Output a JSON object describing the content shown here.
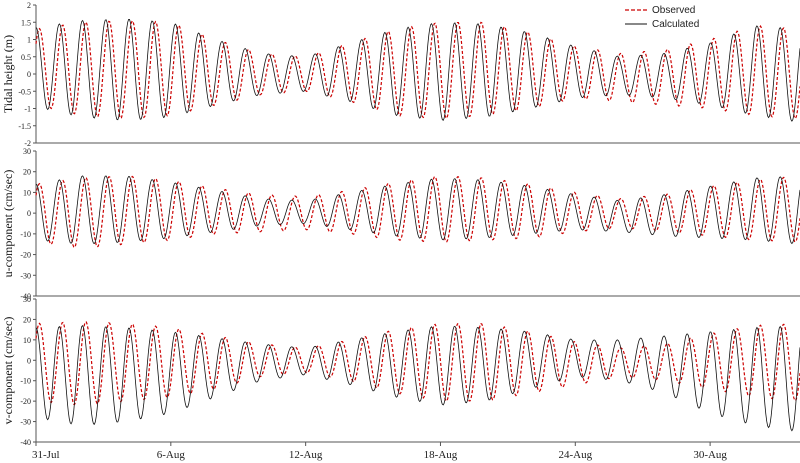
{
  "chart_data": [
    {
      "type": "line",
      "panel": "tidal-height",
      "ylabel": "Tidal height (m)",
      "ylim": [
        -2,
        2
      ],
      "yticks": [
        "-2",
        "-1.5",
        "-1",
        "-0.5",
        "0",
        "0.5",
        "1",
        "1.5",
        "2"
      ],
      "xlim": [
        "31-Jul",
        "3-Sep"
      ],
      "legend": "top-right",
      "series": [
        {
          "name": "Observed",
          "color": "#cc0000",
          "dash": true,
          "envelope": {
            "x": [
              "31-Jul",
              "2-Aug",
              "4-Aug",
              "6-Aug",
              "8-Aug",
              "10-Aug",
              "12-Aug",
              "14-Aug",
              "16-Aug",
              "18-Aug",
              "20-Aug",
              "22-Aug",
              "24-Aug",
              "26-Aug",
              "28-Aug",
              "30-Aug",
              "1-Sep",
              "3-Sep"
            ],
            "max": [
              1.3,
              1.5,
              1.55,
              1.5,
              1.0,
              0.6,
              0.5,
              0.9,
              1.3,
              1.5,
              1.5,
              1.2,
              0.8,
              0.6,
              0.7,
              1.0,
              1.4,
              1.3
            ],
            "min": [
              -0.9,
              -1.2,
              -1.3,
              -1.2,
              -0.9,
              -0.6,
              -0.5,
              -0.8,
              -1.2,
              -1.3,
              -1.2,
              -1.0,
              -0.7,
              -0.8,
              -0.9,
              -1.0,
              -1.2,
              -1.3
            ]
          }
        },
        {
          "name": "Calculated",
          "color": "#111111",
          "dash": false,
          "envelope": {
            "x": [
              "31-Jul",
              "2-Aug",
              "4-Aug",
              "6-Aug",
              "8-Aug",
              "10-Aug",
              "12-Aug",
              "14-Aug",
              "16-Aug",
              "18-Aug",
              "20-Aug",
              "22-Aug",
              "24-Aug",
              "26-Aug",
              "28-Aug",
              "30-Aug",
              "1-Sep",
              "3-Sep"
            ],
            "max": [
              1.35,
              1.55,
              1.6,
              1.5,
              1.0,
              0.6,
              0.5,
              0.9,
              1.3,
              1.5,
              1.45,
              1.2,
              0.8,
              0.5,
              0.6,
              0.9,
              1.4,
              1.3
            ],
            "min": [
              -0.95,
              -1.25,
              -1.35,
              -1.25,
              -0.9,
              -0.6,
              -0.5,
              -0.8,
              -1.2,
              -1.35,
              -1.25,
              -1.0,
              -0.7,
              -0.6,
              -0.7,
              -0.9,
              -1.2,
              -1.4
            ]
          }
        }
      ]
    },
    {
      "type": "line",
      "panel": "u-component",
      "ylabel": "u-component (cm/sec)",
      "ylim": [
        -40,
        30
      ],
      "yticks": [
        "-40",
        "-30",
        "-20",
        "-10",
        "0",
        "10",
        "20",
        "30"
      ],
      "xlim": [
        "31-Jul",
        "3-Sep"
      ],
      "series": [
        {
          "name": "Observed",
          "color": "#cc0000",
          "dash": true,
          "envelope": {
            "x": [
              "31-Jul",
              "2-Aug",
              "4-Aug",
              "6-Aug",
              "8-Aug",
              "10-Aug",
              "12-Aug",
              "14-Aug",
              "16-Aug",
              "18-Aug",
              "20-Aug",
              "22-Aug",
              "24-Aug",
              "26-Aug",
              "28-Aug",
              "30-Aug",
              "1-Sep",
              "3-Sep"
            ],
            "max": [
              14,
              17,
              18,
              16,
              12,
              9,
              8,
              11,
              15,
              18,
              17,
              14,
              10,
              7,
              9,
              13,
              16,
              18
            ],
            "min": [
              -14,
              -17,
              -15,
              -13,
              -10,
              -9,
              -8,
              -10,
              -13,
              -14,
              -13,
              -12,
              -9,
              -7,
              -9,
              -11,
              -13,
              -14
            ]
          }
        },
        {
          "name": "Calculated",
          "color": "#111111",
          "dash": false,
          "envelope": {
            "x": [
              "31-Jul",
              "2-Aug",
              "4-Aug",
              "6-Aug",
              "8-Aug",
              "10-Aug",
              "12-Aug",
              "14-Aug",
              "16-Aug",
              "18-Aug",
              "20-Aug",
              "22-Aug",
              "24-Aug",
              "26-Aug",
              "28-Aug",
              "30-Aug",
              "1-Sep",
              "3-Sep"
            ],
            "max": [
              14,
              18,
              18,
              15,
              11,
              7,
              6,
              10,
              14,
              17,
              16,
              13,
              9,
              6,
              9,
              13,
              17,
              18
            ],
            "min": [
              -13,
              -15,
              -14,
              -12,
              -9,
              -6,
              -5,
              -8,
              -11,
              -13,
              -12,
              -10,
              -8,
              -9,
              -11,
              -12,
              -13,
              -15
            ]
          }
        }
      ]
    },
    {
      "type": "line",
      "panel": "v-component",
      "ylabel": "v-component (cm/sec)",
      "ylim": [
        -40,
        30
      ],
      "yticks": [
        "-40",
        "-30",
        "-20",
        "-10",
        "0",
        "10",
        "20",
        "30"
      ],
      "xlim": [
        "31-Jul",
        "3-Sep"
      ],
      "xticks": [
        "31-Jul",
        "6-Aug",
        "12-Aug",
        "18-Aug",
        "24-Aug",
        "30-Aug"
      ],
      "series": [
        {
          "name": "Observed",
          "color": "#cc0000",
          "dash": true,
          "envelope": {
            "x": [
              "31-Jul",
              "2-Aug",
              "4-Aug",
              "6-Aug",
              "8-Aug",
              "10-Aug",
              "12-Aug",
              "14-Aug",
              "16-Aug",
              "18-Aug",
              "20-Aug",
              "22-Aug",
              "24-Aug",
              "26-Aug",
              "28-Aug",
              "30-Aug",
              "1-Sep",
              "3-Sep"
            ],
            "max": [
              18,
              19,
              18,
              16,
              12,
              8,
              6,
              10,
              15,
              18,
              18,
              14,
              9,
              6,
              8,
              13,
              17,
              18
            ],
            "min": [
              -20,
              -22,
              -20,
              -18,
              -14,
              -8,
              -6,
              -10,
              -16,
              -20,
              -20,
              -16,
              -12,
              -8,
              -10,
              -14,
              -18,
              -20
            ]
          }
        },
        {
          "name": "Calculated",
          "color": "#111111",
          "dash": false,
          "envelope": {
            "x": [
              "31-Jul",
              "2-Aug",
              "4-Aug",
              "6-Aug",
              "8-Aug",
              "10-Aug",
              "12-Aug",
              "14-Aug",
              "16-Aug",
              "18-Aug",
              "20-Aug",
              "22-Aug",
              "24-Aug",
              "26-Aug",
              "28-Aug",
              "30-Aug",
              "1-Sep",
              "3-Sep"
            ],
            "max": [
              16,
              17,
              16,
              14,
              11,
              8,
              6,
              10,
              14,
              17,
              16,
              14,
              10,
              10,
              12,
              14,
              16,
              17
            ],
            "min": [
              -28,
              -32,
              -30,
              -26,
              -18,
              -10,
              -7,
              -12,
              -18,
              -22,
              -20,
              -14,
              -8,
              -10,
              -16,
              -26,
              -32,
              -35
            ]
          }
        }
      ]
    }
  ]
}
